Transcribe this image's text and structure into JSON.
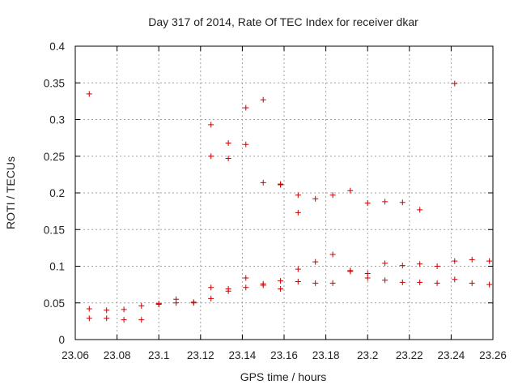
{
  "chart_data": {
    "type": "scatter",
    "title": "Day 317 of 2014, Rate Of TEC Index for receiver dkar",
    "xlabel": "GPS time / hours",
    "ylabel": "ROTI / TECUs",
    "xlim": [
      23.06,
      23.26
    ],
    "ylim": [
      0,
      0.4
    ],
    "xticks": [
      23.06,
      23.08,
      23.1,
      23.12,
      23.14,
      23.16,
      23.18,
      23.2,
      23.22,
      23.24,
      23.26
    ],
    "xtick_labels": [
      "23.06",
      "23.08",
      "23.1",
      "23.12",
      "23.14",
      "23.16",
      "23.18",
      "23.2",
      "23.22",
      "23.24",
      "23.26"
    ],
    "yticks": [
      0,
      0.05,
      0.1,
      0.15,
      0.2,
      0.25,
      0.3,
      0.35,
      0.4
    ],
    "ytick_labels": [
      "0",
      "0.05",
      "0.1",
      "0.15",
      "0.2",
      "0.25",
      "0.3",
      "0.35",
      "0.4"
    ],
    "grid": true,
    "marker": "+",
    "marker_color": "#cc0000",
    "series": [
      {
        "name": "ROTI",
        "points": [
          [
            23.0667,
            0.335
          ],
          [
            23.0667,
            0.042
          ],
          [
            23.0667,
            0.029
          ],
          [
            23.075,
            0.04
          ],
          [
            23.075,
            0.029
          ],
          [
            23.0833,
            0.041
          ],
          [
            23.0833,
            0.027
          ],
          [
            23.0917,
            0.046
          ],
          [
            23.0917,
            0.027
          ],
          [
            23.1,
            0.049
          ],
          [
            23.1,
            0.048
          ],
          [
            23.1083,
            0.055
          ],
          [
            23.1083,
            0.05
          ],
          [
            23.1167,
            0.051
          ],
          [
            23.1167,
            0.05
          ],
          [
            23.125,
            0.293
          ],
          [
            23.125,
            0.25
          ],
          [
            23.125,
            0.071
          ],
          [
            23.125,
            0.056
          ],
          [
            23.1333,
            0.268
          ],
          [
            23.1333,
            0.247
          ],
          [
            23.1333,
            0.069
          ],
          [
            23.1333,
            0.066
          ],
          [
            23.1417,
            0.316
          ],
          [
            23.1417,
            0.266
          ],
          [
            23.1417,
            0.084
          ],
          [
            23.1417,
            0.071
          ],
          [
            23.15,
            0.327
          ],
          [
            23.15,
            0.214
          ],
          [
            23.15,
            0.076
          ],
          [
            23.15,
            0.074
          ],
          [
            23.1583,
            0.212
          ],
          [
            23.1583,
            0.211
          ],
          [
            23.1583,
            0.08
          ],
          [
            23.1583,
            0.069
          ],
          [
            23.1667,
            0.197
          ],
          [
            23.1667,
            0.173
          ],
          [
            23.1667,
            0.096
          ],
          [
            23.1667,
            0.079
          ],
          [
            23.175,
            0.192
          ],
          [
            23.175,
            0.106
          ],
          [
            23.175,
            0.077
          ],
          [
            23.1833,
            0.197
          ],
          [
            23.1833,
            0.116
          ],
          [
            23.1833,
            0.077
          ],
          [
            23.1917,
            0.203
          ],
          [
            23.1917,
            0.094
          ],
          [
            23.1917,
            0.093
          ],
          [
            23.2,
            0.186
          ],
          [
            23.2,
            0.09
          ],
          [
            23.2,
            0.084
          ],
          [
            23.2083,
            0.188
          ],
          [
            23.2083,
            0.104
          ],
          [
            23.2083,
            0.081
          ],
          [
            23.2167,
            0.187
          ],
          [
            23.2167,
            0.101
          ],
          [
            23.2167,
            0.078
          ],
          [
            23.225,
            0.177
          ],
          [
            23.225,
            0.103
          ],
          [
            23.225,
            0.078
          ],
          [
            23.2333,
            0.1
          ],
          [
            23.2333,
            0.077
          ],
          [
            23.2417,
            0.349
          ],
          [
            23.2417,
            0.107
          ],
          [
            23.2417,
            0.082
          ],
          [
            23.25,
            0.109
          ],
          [
            23.25,
            0.077
          ],
          [
            23.2583,
            0.107
          ],
          [
            23.2583,
            0.075
          ]
        ]
      }
    ]
  }
}
